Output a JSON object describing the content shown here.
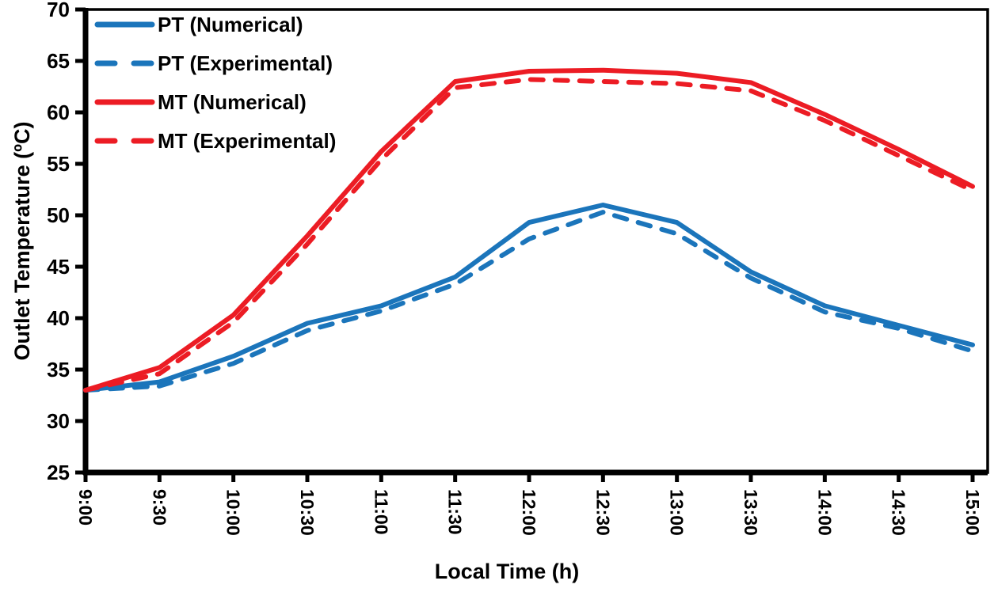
{
  "chart_data": {
    "type": "line",
    "title": "",
    "xlabel": "Local Time (h)",
    "ylabel": "Outlet Temperature (ºC)",
    "ylim": [
      25,
      70
    ],
    "yticks": [
      25,
      30,
      35,
      40,
      45,
      50,
      55,
      60,
      65,
      70
    ],
    "categories": [
      "9:00",
      "9:30",
      "10:00",
      "10:30",
      "11:00",
      "11:30",
      "12:00",
      "12:30",
      "13:00",
      "13:30",
      "14:00",
      "14:30",
      "15:00"
    ],
    "x_tick_rotation_deg": 90,
    "grid": false,
    "legend_position": "top-left-inside",
    "axis_color": "#000000",
    "series": [
      {
        "name": "PT (Numerical)",
        "color": "#1b75bb",
        "style": "solid",
        "values": [
          33.0,
          33.8,
          36.3,
          39.5,
          41.2,
          44.0,
          49.3,
          51.0,
          49.3,
          44.5,
          41.2,
          39.3,
          37.4
        ]
      },
      {
        "name": "PT (Experimental)",
        "color": "#1b75bb",
        "style": "dashed",
        "values": [
          33.0,
          33.4,
          35.6,
          38.8,
          40.7,
          43.3,
          47.7,
          50.3,
          48.2,
          43.9,
          40.6,
          39.0,
          36.8
        ]
      },
      {
        "name": "MT (Numerical)",
        "color": "#ec1c24",
        "style": "solid",
        "values": [
          33.0,
          35.2,
          40.3,
          48.0,
          56.2,
          63.0,
          64.0,
          64.1,
          63.8,
          62.9,
          59.8,
          56.4,
          52.8
        ]
      },
      {
        "name": "MT (Experimental)",
        "color": "#ec1c24",
        "style": "dashed",
        "values": [
          33.0,
          34.6,
          39.6,
          47.2,
          55.4,
          62.4,
          63.2,
          63.0,
          62.8,
          62.1,
          59.2,
          55.8,
          52.4
        ]
      }
    ]
  }
}
